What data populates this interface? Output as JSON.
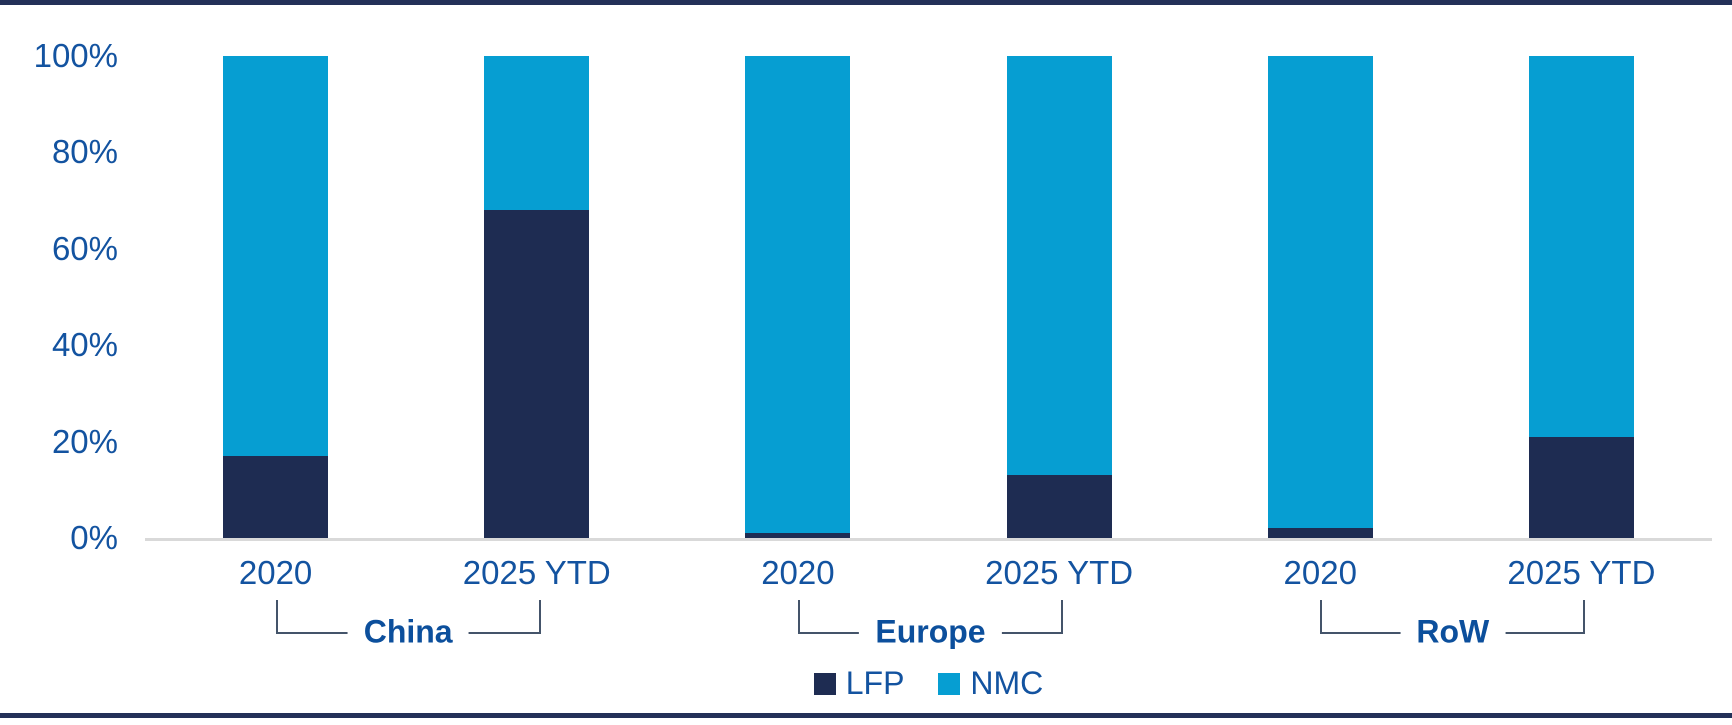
{
  "chart_data": {
    "type": "bar",
    "stacked": true,
    "unit": "%",
    "categories": [
      "2020",
      "2025 YTD",
      "2020",
      "2025 YTD",
      "2020",
      "2025 YTD"
    ],
    "category_groups": [
      {
        "label": "China",
        "span": [
          0,
          1
        ]
      },
      {
        "label": "Europe",
        "span": [
          2,
          3
        ]
      },
      {
        "label": "RoW",
        "span": [
          4,
          5
        ]
      }
    ],
    "series": [
      {
        "name": "LFP",
        "color": "#1e2c52",
        "values": [
          17,
          68,
          1,
          13,
          2,
          21
        ]
      },
      {
        "name": "NMC",
        "color": "#069ed2",
        "values": [
          83,
          32,
          99,
          87,
          98,
          79
        ]
      }
    ],
    "title": "",
    "xlabel": "",
    "ylabel": "",
    "ylim": [
      0,
      100
    ],
    "y_tick_labels": [
      "0%",
      "20%",
      "40%",
      "60%",
      "80%",
      "100%"
    ],
    "grid": false,
    "legend": {
      "position": "bottom",
      "entries": [
        "LFP",
        "NMC"
      ]
    }
  },
  "colors": {
    "lfp_navy": "#1e2c52",
    "nmc_cyan": "#069ed2",
    "tick_label_blue": "#1353a0",
    "group_label_blue": "#0c4f9c",
    "border_navy": "#233058",
    "axis_line_gray": "#d9d9d9",
    "bracket_line": "#44546a"
  }
}
